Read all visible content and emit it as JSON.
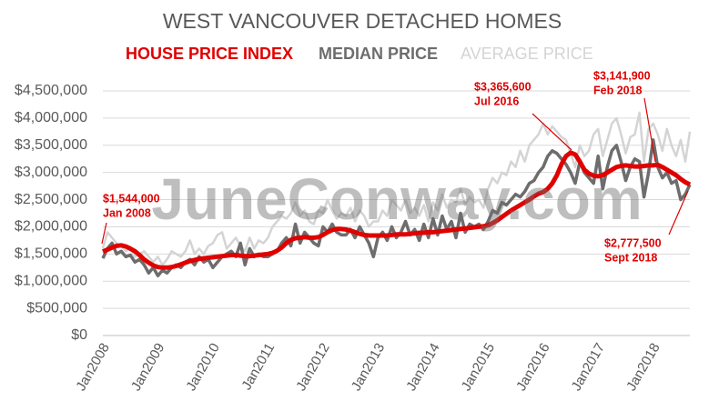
{
  "chart_data": {
    "type": "line",
    "title": "WEST VANCOUVER DETACHED HOMES",
    "watermark": "JuneConway.com",
    "categories": [
      "Jan2008",
      null,
      null,
      null,
      null,
      null,
      null,
      null,
      null,
      null,
      null,
      null,
      "Jan2009",
      null,
      null,
      null,
      null,
      null,
      null,
      null,
      null,
      null,
      null,
      null,
      "Jan2010",
      null,
      null,
      null,
      null,
      null,
      null,
      null,
      null,
      null,
      null,
      null,
      "Jan2011",
      null,
      null,
      null,
      null,
      null,
      null,
      null,
      null,
      null,
      null,
      null,
      "Jan2012",
      null,
      null,
      null,
      null,
      null,
      null,
      null,
      null,
      null,
      null,
      null,
      "Jan2013",
      null,
      null,
      null,
      null,
      null,
      null,
      null,
      null,
      null,
      null,
      null,
      "Jan2014",
      null,
      null,
      null,
      null,
      null,
      null,
      null,
      null,
      null,
      null,
      null,
      "Jan2015",
      null,
      null,
      null,
      null,
      null,
      null,
      null,
      null,
      null,
      null,
      null,
      "Jan2016",
      null,
      null,
      null,
      null,
      null,
      null,
      null,
      null,
      null,
      null,
      null,
      "Jan2017",
      null,
      null,
      null,
      null,
      null,
      null,
      null,
      null,
      null,
      null,
      null,
      "Jan2018",
      null,
      null,
      null,
      null,
      null,
      null,
      null,
      null
    ],
    "series": [
      {
        "name": "HOUSE PRICE INDEX",
        "color": "#e00000",
        "values": [
          1544000,
          1580000,
          1620000,
          1650000,
          1660000,
          1640000,
          1600000,
          1550000,
          1480000,
          1400000,
          1340000,
          1290000,
          1260000,
          1250000,
          1250000,
          1260000,
          1280000,
          1310000,
          1340000,
          1370000,
          1390000,
          1410000,
          1420000,
          1430000,
          1440000,
          1450000,
          1460000,
          1470000,
          1480000,
          1480000,
          1470000,
          1460000,
          1460000,
          1470000,
          1480000,
          1490000,
          1500000,
          1520000,
          1560000,
          1620000,
          1700000,
          1760000,
          1790000,
          1800000,
          1810000,
          1800000,
          1800000,
          1810000,
          1850000,
          1900000,
          1940000,
          1960000,
          1960000,
          1950000,
          1930000,
          1900000,
          1870000,
          1850000,
          1840000,
          1840000,
          1840000,
          1840000,
          1840000,
          1850000,
          1860000,
          1860000,
          1860000,
          1870000,
          1880000,
          1890000,
          1890000,
          1900000,
          1900000,
          1910000,
          1920000,
          1930000,
          1940000,
          1950000,
          1960000,
          1970000,
          1980000,
          1990000,
          2000000,
          2010000,
          2030000,
          2070000,
          2120000,
          2180000,
          2240000,
          2300000,
          2350000,
          2400000,
          2450000,
          2500000,
          2560000,
          2610000,
          2640000,
          2700000,
          2800000,
          2950000,
          3150000,
          3300000,
          3365600,
          3330000,
          3200000,
          3050000,
          2980000,
          2940000,
          2930000,
          2950000,
          3000000,
          3050000,
          3100000,
          3120000,
          3130000,
          3120000,
          3110000,
          3110000,
          3120000,
          3130000,
          3130000,
          3141900,
          3100000,
          3050000,
          3000000,
          2950000,
          2880000,
          2820000,
          2777500
        ]
      },
      {
        "name": "MEDIAN PRICE",
        "color": "#6d6d6d",
        "values": [
          1420000,
          1600000,
          1700000,
          1500000,
          1550000,
          1450000,
          1480000,
          1350000,
          1400000,
          1300000,
          1150000,
          1250000,
          1100000,
          1200000,
          1150000,
          1250000,
          1300000,
          1250000,
          1350000,
          1400000,
          1300000,
          1450000,
          1350000,
          1400000,
          1250000,
          1350000,
          1450000,
          1500000,
          1550000,
          1450000,
          1700000,
          1300000,
          1600000,
          1450000,
          1500000,
          1450000,
          1450000,
          1500000,
          1550000,
          1700000,
          1800000,
          1650000,
          2050000,
          1700000,
          1900000,
          1800000,
          1700000,
          1650000,
          2000000,
          1900000,
          2050000,
          1900000,
          1850000,
          1850000,
          1950000,
          1800000,
          2000000,
          1850000,
          1700000,
          1450000,
          1800000,
          1900000,
          1750000,
          2000000,
          1800000,
          1900000,
          2100000,
          1850000,
          1950000,
          1750000,
          2050000,
          1800000,
          2150000,
          1850000,
          2200000,
          1950000,
          2100000,
          1800000,
          2250000,
          1900000,
          2050000,
          2000000,
          2050000,
          1950000,
          2100000,
          2300000,
          2250000,
          2450000,
          2400000,
          2500000,
          2600000,
          2550000,
          2650000,
          2800000,
          2850000,
          3000000,
          3100000,
          3300000,
          3400000,
          3350000,
          3250000,
          3150000,
          3000000,
          2800000,
          3200000,
          3000000,
          2900000,
          2800000,
          3300000,
          2700000,
          3100000,
          3400000,
          3500000,
          3200000,
          2850000,
          3100000,
          3250000,
          3200000,
          2550000,
          3000000,
          3600000,
          3100000,
          2900000,
          3000000,
          2800000,
          2850000,
          2500000,
          2600000,
          2777500
        ]
      },
      {
        "name": "AVERAGE PRICE",
        "color": "#d4d4d4",
        "values": [
          1600000,
          1900000,
          1800000,
          1700000,
          1650000,
          1550000,
          1600000,
          1450000,
          1500000,
          1550000,
          1450000,
          1350000,
          1450000,
          1300000,
          1400000,
          1550000,
          1500000,
          1450000,
          1550000,
          1750000,
          1500000,
          1600000,
          1500000,
          1650000,
          1700000,
          1850000,
          1900000,
          1600000,
          1700000,
          1800000,
          1650000,
          1550000,
          1800000,
          1600000,
          1750000,
          1700000,
          1800000,
          2000000,
          2100000,
          2200000,
          2150000,
          2250000,
          2450000,
          2200000,
          2300000,
          2100000,
          2050000,
          2300000,
          2250000,
          2500000,
          2300000,
          2150000,
          2250000,
          2200000,
          2350000,
          2100000,
          2300000,
          2200000,
          2000000,
          2100000,
          2100000,
          2300000,
          2200000,
          2500000,
          2400000,
          2300000,
          2500000,
          2250000,
          2350000,
          2200000,
          2400000,
          2100000,
          2450000,
          2300000,
          2600000,
          2350000,
          2500000,
          2450000,
          2700000,
          2400000,
          2550000,
          2450000,
          2500000,
          2350000,
          2700000,
          2900000,
          2800000,
          3000000,
          2950000,
          3200000,
          3100000,
          3400000,
          3200000,
          3500000,
          3600000,
          3700000,
          3900000,
          3700000,
          3850000,
          3750000,
          3650000,
          3600000,
          3350000,
          3100000,
          3500000,
          3300000,
          3400000,
          3700000,
          3800000,
          3300000,
          3600000,
          3900000,
          4000000,
          3700000,
          3350000,
          3650000,
          3700000,
          4100000,
          3200000,
          3800000,
          3900000,
          3700000,
          3400000,
          3800000,
          3500000,
          3300000,
          3600000,
          3200000,
          3750000
        ]
      }
    ],
    "ylim": [
      0,
      4500000
    ],
    "yticks": [
      {
        "value": 0,
        "label": "$0"
      },
      {
        "value": 500000,
        "label": "$500,000"
      },
      {
        "value": 1000000,
        "label": "$1,000,000"
      },
      {
        "value": 1500000,
        "label": "$1,500,000"
      },
      {
        "value": 2000000,
        "label": "$2,000,000"
      },
      {
        "value": 2500000,
        "label": "$2,500,000"
      },
      {
        "value": 3000000,
        "label": "$3,000,000"
      },
      {
        "value": 3500000,
        "label": "$3,500,000"
      },
      {
        "value": 4000000,
        "label": "$4,000,000"
      },
      {
        "value": 4500000,
        "label": "$4,500,000"
      }
    ],
    "grid": true,
    "annotations": [
      {
        "value": "$1,544,000",
        "date": "Jan 2008"
      },
      {
        "value": "$3,365,600",
        "date": "Jul 2016"
      },
      {
        "value": "$3,141,900",
        "date": "Feb 2018"
      },
      {
        "value": "$2,777,500",
        "date": "Sept 2018"
      }
    ]
  }
}
